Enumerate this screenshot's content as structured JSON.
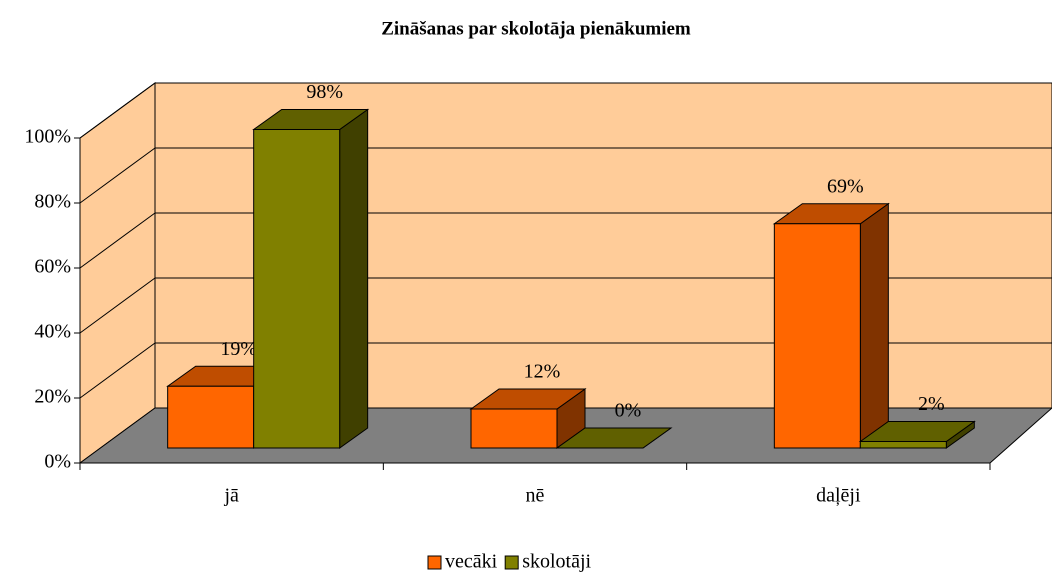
{
  "chart_data": {
    "type": "bar3d",
    "title": "Zināšanas par skolotāja pienākumiem",
    "categories": [
      "jā",
      "nē",
      "daļēji"
    ],
    "series": [
      {
        "name": "vecāki",
        "color": "#ff6600",
        "values": [
          19,
          12,
          69
        ],
        "value_labels": [
          "19%",
          "12%",
          "69%"
        ]
      },
      {
        "name": "skolotāji",
        "color": "#808000",
        "values": [
          98,
          0,
          2
        ],
        "value_labels": [
          "98%",
          "0%",
          "2%"
        ]
      }
    ],
    "ylim": [
      0,
      100
    ],
    "yticks": [
      {
        "value": 0,
        "label": "0%"
      },
      {
        "value": 20,
        "label": "20%"
      },
      {
        "value": 40,
        "label": "40%"
      },
      {
        "value": 60,
        "label": "60%"
      },
      {
        "value": 80,
        "label": "80%"
      },
      {
        "value": 100,
        "label": "100%"
      }
    ],
    "grid": true,
    "legend": "bottom"
  }
}
